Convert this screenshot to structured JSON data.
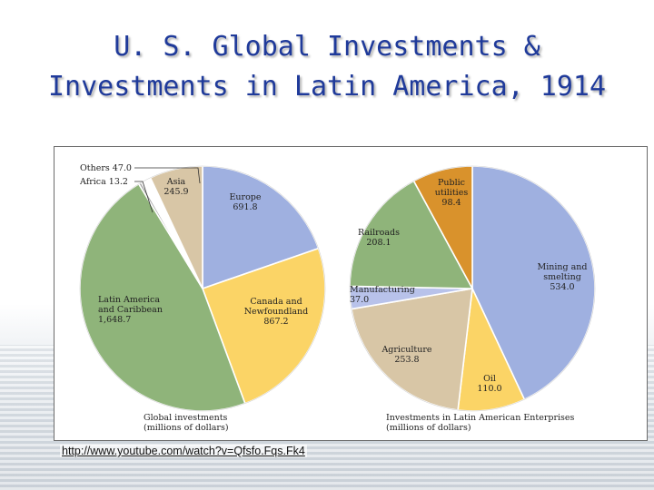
{
  "title_line1": "U. S. Global Investments &",
  "title_line2": "Investments in Latin America, 1914",
  "source_link": "http://www.youtube.com/watch?v=Qfsfo.Fqs.Fk4",
  "chart_data": [
    {
      "type": "pie",
      "xlabel": "Global investments\n(millions of dollars)",
      "slices": [
        {
          "label": "Europe",
          "value": 691.8,
          "value_text": "691.8",
          "color": "#9fb0e0"
        },
        {
          "label": "Canada and Newfoundland",
          "value": 867.2,
          "value_text": "867.2",
          "color": "#fbd466"
        },
        {
          "label": "Latin America and Caribbean",
          "value": 1648.7,
          "value_text": "1,648.7",
          "color": "#8fb47a"
        },
        {
          "label": "Africa",
          "value": 13.2,
          "value_text": "13.2",
          "color": "#a8a8a8"
        },
        {
          "label": "Others",
          "value": 47.0,
          "value_text": "47.0",
          "color": "#ffffff"
        },
        {
          "label": "Asia",
          "value": 245.9,
          "value_text": "245.9",
          "color": "#d8c6a6"
        }
      ]
    },
    {
      "type": "pie",
      "xlabel": "Investments in Latin American Enterprises\n(millions of dollars)",
      "slices": [
        {
          "label": "Mining and smelting",
          "value": 534.0,
          "value_text": "534.0",
          "color": "#9fb0e0"
        },
        {
          "label": "Oil",
          "value": 110.0,
          "value_text": "110.0",
          "color": "#fbd466"
        },
        {
          "label": "Agriculture",
          "value": 253.8,
          "value_text": "253.8",
          "color": "#d8c6a6"
        },
        {
          "label": "Manufacturing",
          "value": 37.0,
          "value_text": "37.0",
          "color": "#b8c2ea"
        },
        {
          "label": "Railroads",
          "value": 208.1,
          "value_text": "208.1",
          "color": "#8fb47a"
        },
        {
          "label": "Public utilities",
          "value": 98.4,
          "value_text": "98.4",
          "color": "#d9922c"
        }
      ]
    }
  ]
}
